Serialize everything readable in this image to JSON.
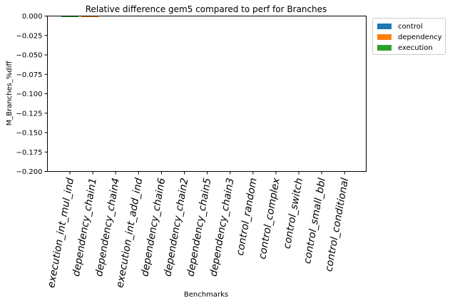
{
  "chart_data": {
    "type": "bar",
    "title": "Relative difference gem5 compared to perf for Branches",
    "xlabel": "Benchmarks",
    "ylabel": "M_Branches_%diff",
    "ylim": [
      -0.2,
      0.0
    ],
    "yticks": [
      "0.000",
      "−0.025",
      "−0.050",
      "−0.075",
      "−0.100",
      "−0.125",
      "−0.150",
      "−0.175",
      "−0.200"
    ],
    "ytick_values": [
      0.0,
      -0.025,
      -0.05,
      -0.075,
      -0.1,
      -0.125,
      -0.15,
      -0.175,
      -0.2
    ],
    "categories": [
      "execution_int_mul_ind",
      "dependency_chain1",
      "dependency_chain4",
      "execution_int_add_ind",
      "dependency_chain6",
      "dependency_chain2",
      "dependency_chain5",
      "dependency_chain3",
      "control_random",
      "control_complex",
      "control_switch",
      "control_small_bbl",
      "control_conditional"
    ],
    "series": [
      {
        "name": "control",
        "color": "#1f77b4",
        "values": [
          0,
          0,
          0,
          0,
          0,
          0,
          0,
          0,
          0,
          0,
          0,
          0,
          0
        ]
      },
      {
        "name": "dependency",
        "color": "#ff7f0e",
        "values": [
          0,
          -0.001,
          0,
          0,
          0,
          0,
          0,
          0,
          0,
          0,
          0,
          0,
          0
        ]
      },
      {
        "name": "execution",
        "color": "#2ca02c",
        "values": [
          -0.001,
          0,
          0,
          0,
          0,
          0,
          0,
          0,
          0,
          0,
          0,
          0,
          0
        ]
      }
    ],
    "grid": false,
    "legend_position": "outside-top-right"
  }
}
